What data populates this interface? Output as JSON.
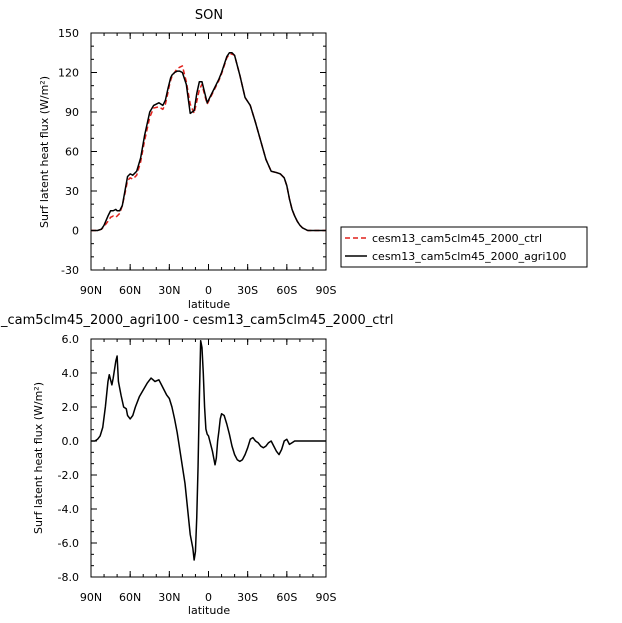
{
  "chart_data": [
    {
      "type": "line",
      "title": "SON",
      "xlabel": "latitude",
      "ylabel": "Surf latent heat flux (W/m²)",
      "xlim": [
        90,
        -90
      ],
      "ylim": [
        -30,
        150
      ],
      "x_tick_values": [
        90,
        60,
        30,
        0,
        -30,
        -60,
        -90
      ],
      "x_tick_labels": [
        "90N",
        "60N",
        "30N",
        "0",
        "30S",
        "60S",
        "90S"
      ],
      "y_tick_values": [
        -30,
        0,
        30,
        60,
        90,
        120,
        150
      ],
      "y_tick_labels": [
        "-30",
        "0",
        "30",
        "60",
        "90",
        "120",
        "150"
      ],
      "legend_position": "right",
      "series": [
        {
          "name": "cesm13_cam5clm45_2000_ctrl",
          "color": "#e0201b",
          "dash": "dashed",
          "x": [
            90,
            85,
            82,
            80,
            77,
            75,
            73,
            71,
            70,
            68,
            66,
            64,
            62,
            60,
            58,
            55,
            52,
            49,
            45,
            42,
            38,
            35,
            33,
            31,
            30,
            29,
            28,
            26,
            24,
            22,
            20,
            17,
            14,
            11,
            9,
            7,
            5,
            3,
            1,
            0,
            -2,
            -4,
            -6,
            -8,
            -10,
            -12,
            -14,
            -16,
            -18,
            -20,
            -24,
            -28,
            -32,
            -36,
            -40,
            -44,
            -48,
            -52,
            -55,
            -58,
            -60,
            -62,
            -64,
            -66,
            -68,
            -70,
            -72,
            -74,
            -76,
            -78,
            -80,
            -84,
            -88,
            -90
          ],
          "y": [
            0,
            0,
            1,
            3,
            7,
            10,
            11,
            10,
            11,
            13,
            19,
            28,
            38,
            40,
            39,
            42,
            52,
            68,
            86,
            93,
            94,
            92,
            96,
            105,
            110,
            114,
            117,
            120,
            123,
            124,
            125,
            113,
            96,
            89,
            98,
            107,
            111,
            103,
            96,
            98,
            102,
            106,
            110,
            114,
            119,
            125,
            131,
            134,
            134,
            133,
            118,
            101,
            95,
            82,
            68,
            54,
            45,
            44,
            43,
            40,
            34,
            24,
            16,
            11,
            7,
            4,
            2,
            1,
            0,
            0,
            0,
            0,
            0,
            0
          ]
        },
        {
          "name": "cesm13_cam5clm45_2000_agri100",
          "color": "#000000",
          "dash": "solid",
          "x": [
            90,
            85,
            82,
            80,
            77,
            75,
            73,
            71,
            70,
            68,
            66,
            64,
            62,
            60,
            58,
            55,
            52,
            49,
            45,
            42,
            38,
            35,
            33,
            31,
            30,
            29,
            28,
            26,
            24,
            22,
            20,
            17,
            14,
            11,
            9,
            7,
            5,
            3,
            1,
            0,
            -2,
            -4,
            -6,
            -8,
            -10,
            -12,
            -14,
            -16,
            -18,
            -20,
            -24,
            -28,
            -32,
            -36,
            -40,
            -44,
            -48,
            -52,
            -55,
            -58,
            -60,
            -62,
            -64,
            -66,
            -68,
            -70,
            -72,
            -74,
            -76,
            -78,
            -80,
            -84,
            -88,
            -90
          ],
          "y": [
            0,
            0,
            1,
            4,
            11,
            15,
            15,
            16,
            15,
            15,
            19,
            30,
            41,
            43,
            42,
            45,
            55,
            72,
            90,
            95,
            97,
            95,
            99,
            108,
            112,
            116,
            118,
            120,
            121,
            121,
            120,
            111,
            89,
            91,
            104,
            113,
            113,
            105,
            97,
            99,
            103,
            107,
            111,
            115,
            120,
            126,
            132,
            135,
            135,
            133,
            118,
            101,
            95,
            82,
            68,
            54,
            45,
            44,
            43,
            40,
            34,
            24,
            16,
            11,
            7,
            4,
            2,
            1,
            0,
            0,
            0,
            0,
            0,
            0
          ]
        }
      ]
    },
    {
      "type": "line",
      "title": "_cam5clm45_2000_agri100 - cesm13_cam5clm45_2000_ctrl",
      "xlabel": "latitude",
      "ylabel": "Surf latent heat flux (W/m²)",
      "xlim": [
        90,
        -90
      ],
      "ylim": [
        -8,
        6
      ],
      "x_tick_values": [
        90,
        60,
        30,
        0,
        -30,
        -60,
        -90
      ],
      "x_tick_labels": [
        "90N",
        "60N",
        "30N",
        "0",
        "30S",
        "60S",
        "90S"
      ],
      "y_tick_values": [
        -8,
        -6,
        -4,
        -2,
        0,
        2,
        4,
        6
      ],
      "y_tick_labels": [
        "-8.0",
        "-6.0",
        "-4.0",
        "-2.0",
        "0.0",
        "2.0",
        "4.0",
        "6.0"
      ],
      "series": [
        {
          "color": "#000000",
          "dash": "solid",
          "x": [
            90,
            87,
            85,
            83,
            81,
            79,
            77,
            76,
            75,
            74,
            73,
            71,
            70,
            69,
            67,
            65,
            63,
            62,
            60,
            58,
            56,
            53,
            50,
            47,
            44,
            41,
            38,
            36,
            34,
            32,
            30,
            28,
            26,
            24,
            22,
            20,
            18,
            16,
            14,
            12,
            11,
            10,
            9,
            8,
            7,
            6,
            5,
            4,
            3,
            2,
            1,
            0,
            -1,
            -2,
            -3,
            -4,
            -5,
            -6,
            -7,
            -8,
            -9,
            -10,
            -12,
            -14,
            -16,
            -18,
            -20,
            -22,
            -24,
            -26,
            -28,
            -30,
            -32,
            -34,
            -36,
            -38,
            -40,
            -42,
            -44,
            -46,
            -48,
            -50,
            -52,
            -54,
            -56,
            -58,
            -60,
            -62,
            -64,
            -66,
            -68,
            -70,
            -72,
            -74,
            -76,
            -80,
            -85,
            -90
          ],
          "y": [
            0,
            0,
            0.1,
            0.3,
            0.8,
            2.0,
            3.5,
            3.9,
            3.6,
            3.3,
            3.7,
            4.7,
            5.0,
            3.5,
            2.7,
            2.0,
            1.9,
            1.5,
            1.3,
            1.5,
            2.0,
            2.6,
            3.0,
            3.4,
            3.7,
            3.5,
            3.6,
            3.3,
            3.0,
            2.7,
            2.5,
            2.0,
            1.3,
            0.5,
            -0.5,
            -1.5,
            -2.5,
            -4.0,
            -5.5,
            -6.3,
            -7.0,
            -6.5,
            -4.5,
            -1.5,
            2.5,
            5.9,
            5.5,
            4.0,
            2.0,
            0.7,
            0.4,
            0.3,
            0.0,
            -0.3,
            -0.6,
            -1.0,
            -1.4,
            -1.0,
            0.0,
            0.6,
            1.3,
            1.6,
            1.5,
            1.0,
            0.4,
            -0.3,
            -0.8,
            -1.1,
            -1.2,
            -1.1,
            -0.8,
            -0.4,
            0.1,
            0.2,
            0.0,
            -0.1,
            -0.3,
            -0.4,
            -0.3,
            -0.1,
            0.0,
            -0.3,
            -0.6,
            -0.8,
            -0.5,
            0.0,
            0.1,
            -0.2,
            -0.1,
            0.0,
            0.0,
            0.0,
            0.0,
            0.0,
            0.0,
            0.0,
            0.0,
            0.0
          ]
        }
      ]
    }
  ],
  "legend": {
    "entries": [
      {
        "label": "cesm13_cam5clm45_2000_ctrl",
        "color": "#e0201b",
        "dash": "dashed"
      },
      {
        "label": "cesm13_cam5clm45_2000_agri100",
        "color": "#000000",
        "dash": "solid"
      }
    ]
  }
}
